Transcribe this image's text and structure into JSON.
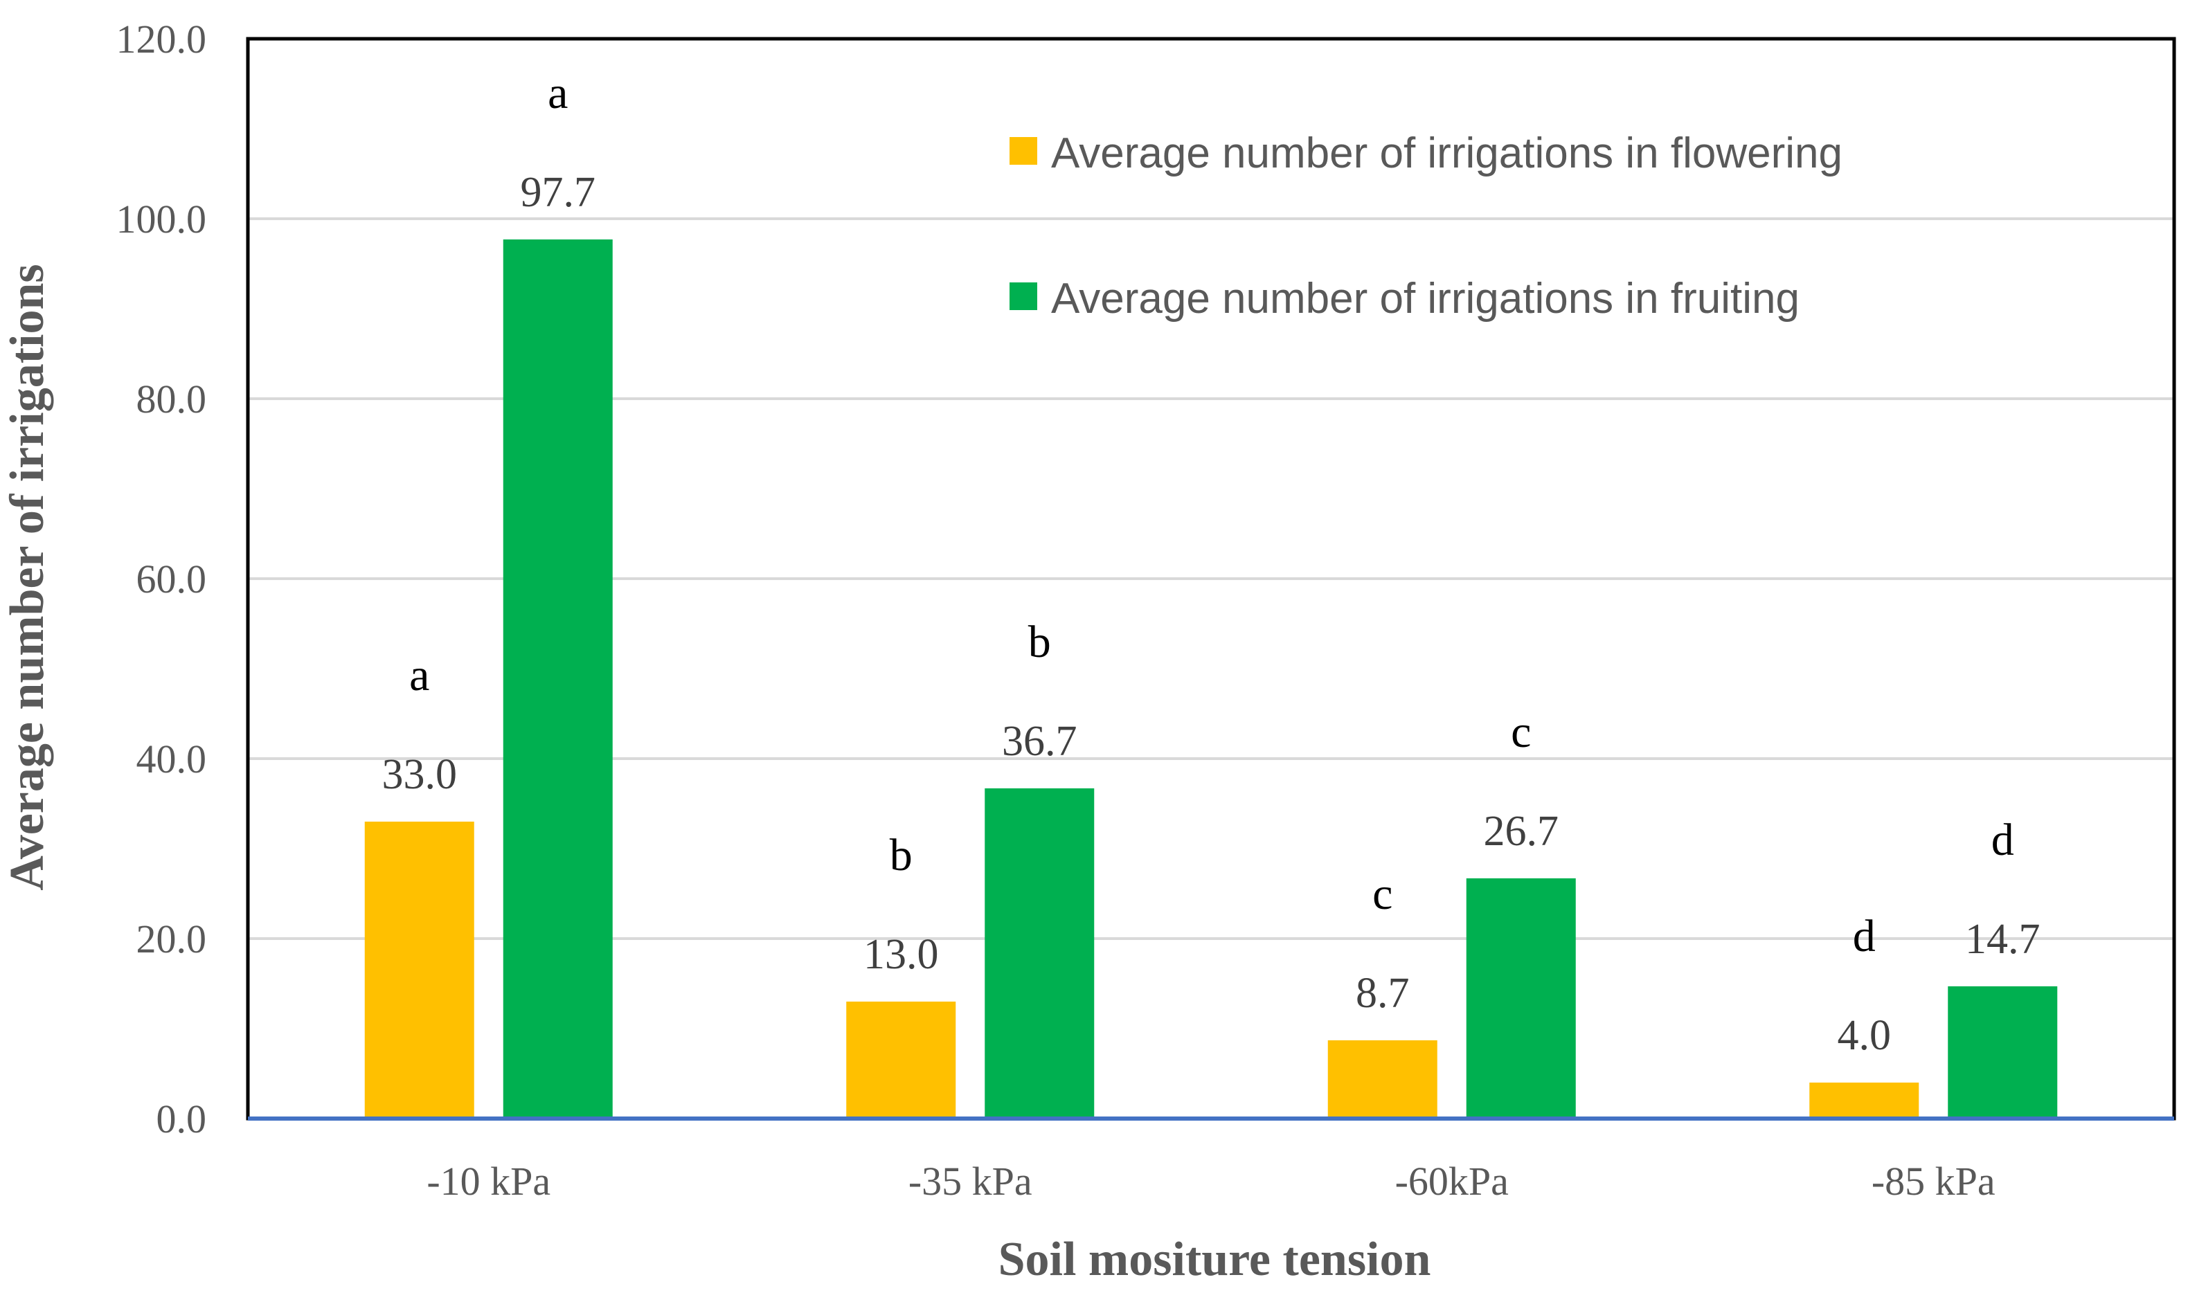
{
  "chart_data": {
    "type": "bar",
    "title": "",
    "xlabel": "Soil mositure tension",
    "ylabel": "Average number of irrigations",
    "ylim": [
      0,
      120
    ],
    "ytick_step": 20,
    "ytick_labels": [
      "0.0",
      "20.0",
      "40.0",
      "60.0",
      "80.0",
      "100.0",
      "120.0"
    ],
    "grid": true,
    "legend_position": "top-right",
    "categories": [
      "-10 kPa",
      "-35 kPa",
      "-60kPa",
      "-85 kPa"
    ],
    "series": [
      {
        "name": "Average number of irrigations in flowering",
        "color": "#FFC000",
        "values": [
          33.0,
          13.0,
          8.7,
          4.0
        ],
        "value_labels": [
          "33.0",
          "13.0",
          "8.7",
          "4.0"
        ],
        "significance": [
          "a",
          "b",
          "c",
          "d"
        ]
      },
      {
        "name": "Average number of irrigations in fruiting",
        "color": "#00B050",
        "values": [
          97.7,
          36.7,
          26.7,
          14.7
        ],
        "value_labels": [
          "97.7",
          "36.7",
          "26.7",
          "14.7"
        ],
        "significance": [
          "a",
          "b",
          "c",
          "d"
        ]
      }
    ],
    "colors": {
      "gridline": "#D9D9D9",
      "frame": "#000000",
      "baseline": "#4472C4"
    }
  }
}
